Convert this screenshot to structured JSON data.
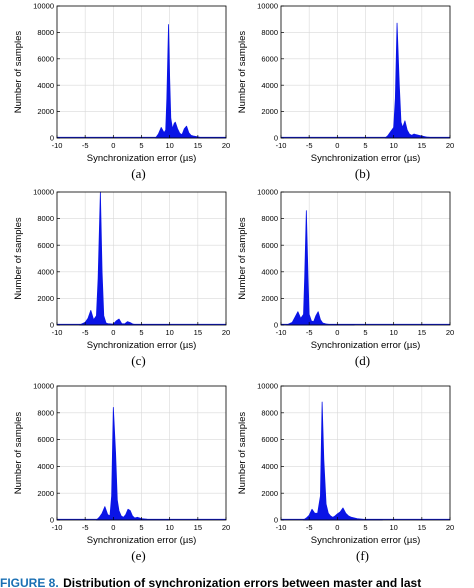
{
  "figure": {
    "caption_prefix": "FIGURE 8.",
    "caption_text": "Distribution of synchronization errors between master and last"
  },
  "colors": {
    "fill": "#0a14e6",
    "grid": "#d9d9d9",
    "axis": "#000000"
  },
  "chart_data": [
    {
      "type": "area",
      "panel_label": "(a)",
      "xlabel": "Synchronization error (µs)",
      "ylabel": "Number of samples",
      "xlim": [
        -10,
        20
      ],
      "ylim": [
        0,
        10000
      ],
      "xticks": [
        -10,
        -5,
        0,
        5,
        10,
        15,
        20
      ],
      "yticks": [
        0,
        2000,
        4000,
        6000,
        8000,
        10000
      ],
      "grid": true,
      "series": [
        {
          "x": [
            7.5,
            8,
            8.5,
            9,
            9.3,
            9.5,
            9.8,
            10,
            10.2,
            10.5,
            10.8,
            11,
            11.4,
            11.8,
            12.2,
            12.6,
            13,
            13.4,
            13.8,
            14.2,
            14.8,
            15.5,
            17,
            20
          ],
          "y": [
            0,
            300,
            800,
            400,
            600,
            3000,
            8600,
            4500,
            1500,
            700,
            1100,
            1200,
            700,
            350,
            250,
            700,
            900,
            400,
            200,
            150,
            100,
            40,
            10,
            0
          ]
        }
      ]
    },
    {
      "type": "area",
      "panel_label": "(b)",
      "xlabel": "Synchronization error (µs)",
      "ylabel": "Number of samples",
      "xlim": [
        -10,
        20
      ],
      "ylim": [
        0,
        10000
      ],
      "xticks": [
        -10,
        -5,
        0,
        5,
        10,
        15,
        20
      ],
      "yticks": [
        0,
        2000,
        4000,
        6000,
        8000,
        10000
      ],
      "grid": true,
      "series": [
        {
          "x": [
            8.5,
            9,
            9.5,
            10,
            10.3,
            10.6,
            11,
            11.3,
            11.6,
            12,
            12.4,
            12.8,
            13.2,
            13.6,
            14,
            14.5,
            15,
            16,
            17.5,
            20
          ],
          "y": [
            0,
            200,
            500,
            800,
            3000,
            8700,
            4000,
            1200,
            800,
            1300,
            600,
            300,
            200,
            300,
            250,
            200,
            150,
            60,
            10,
            0
          ]
        }
      ]
    },
    {
      "type": "area",
      "panel_label": "(c)",
      "xlabel": "Synchronization error (µs)",
      "ylabel": "Number of samples",
      "xlim": [
        -10,
        20
      ],
      "ylim": [
        0,
        10000
      ],
      "xticks": [
        -10,
        -5,
        0,
        5,
        10,
        15,
        20
      ],
      "yticks": [
        0,
        2000,
        4000,
        6000,
        8000,
        10000
      ],
      "grid": true,
      "series": [
        {
          "x": [
            -6,
            -5,
            -4.5,
            -4,
            -3.5,
            -3,
            -2.7,
            -2.3,
            -2,
            -1.7,
            -1.3,
            -1,
            -0.5,
            0,
            0.5,
            1,
            1.5,
            2,
            2.5,
            3,
            3.5,
            4,
            6,
            10
          ],
          "y": [
            0,
            200,
            500,
            1100,
            400,
            700,
            3500,
            10000,
            4000,
            700,
            150,
            100,
            80,
            60,
            300,
            450,
            100,
            80,
            250,
            180,
            60,
            30,
            10,
            0
          ]
        }
      ]
    },
    {
      "type": "area",
      "panel_label": "(d)",
      "xlabel": "Synchronization error (µs)",
      "ylabel": "Number of samples",
      "xlim": [
        -10,
        20
      ],
      "ylim": [
        0,
        10000
      ],
      "xticks": [
        -10,
        -5,
        0,
        5,
        10,
        15,
        20
      ],
      "yticks": [
        0,
        2000,
        4000,
        6000,
        8000,
        10000
      ],
      "grid": true,
      "series": [
        {
          "x": [
            -9,
            -8,
            -7.5,
            -7,
            -6.5,
            -6,
            -5.8,
            -5.5,
            -5.2,
            -5,
            -4.6,
            -4.2,
            -3.8,
            -3.4,
            -3,
            -2.6,
            -2.2,
            -1.8,
            -1.2,
            0,
            3
          ],
          "y": [
            0,
            200,
            600,
            1000,
            500,
            800,
            3500,
            8600,
            3500,
            800,
            300,
            250,
            700,
            1000,
            400,
            150,
            100,
            60,
            30,
            10,
            0
          ]
        }
      ]
    },
    {
      "type": "area",
      "panel_label": "(e)",
      "xlabel": "Synchronization error (µs)",
      "ylabel": "Number of samples",
      "xlim": [
        -10,
        20
      ],
      "ylim": [
        0,
        10000
      ],
      "xticks": [
        -10,
        -5,
        0,
        5,
        10,
        15,
        20
      ],
      "yticks": [
        0,
        2000,
        4000,
        6000,
        8000,
        10000
      ],
      "grid": true,
      "series": [
        {
          "x": [
            -3,
            -2.5,
            -2,
            -1.5,
            -1,
            -0.6,
            -0.3,
            0,
            0.4,
            0.7,
            1,
            1.4,
            1.8,
            2.2,
            2.6,
            3,
            3.4,
            3.8,
            4.3,
            5,
            6,
            7.5,
            10
          ],
          "y": [
            0,
            200,
            500,
            1000,
            400,
            300,
            1800,
            8400,
            5000,
            1500,
            700,
            300,
            200,
            400,
            800,
            700,
            300,
            150,
            200,
            100,
            50,
            10,
            0
          ]
        }
      ]
    },
    {
      "type": "area",
      "panel_label": "(f)",
      "xlabel": "Synchronization error (µs)",
      "ylabel": "Number of samples",
      "xlim": [
        -10,
        20
      ],
      "ylim": [
        0,
        10000
      ],
      "xticks": [
        -10,
        -5,
        0,
        5,
        10,
        15,
        20
      ],
      "yticks": [
        0,
        2000,
        4000,
        6000,
        8000,
        10000
      ],
      "grid": true,
      "series": [
        {
          "x": [
            -6,
            -5.5,
            -5,
            -4.5,
            -4,
            -3.5,
            -3,
            -2.7,
            -2.4,
            -2,
            -1.6,
            -1.2,
            -0.8,
            -0.4,
            0,
            0.5,
            1,
            1.5,
            2,
            2.5,
            3.5,
            5,
            8
          ],
          "y": [
            0,
            150,
            350,
            800,
            500,
            500,
            1800,
            8800,
            4500,
            1200,
            500,
            300,
            200,
            300,
            450,
            600,
            900,
            500,
            300,
            200,
            100,
            30,
            0
          ]
        }
      ]
    }
  ]
}
